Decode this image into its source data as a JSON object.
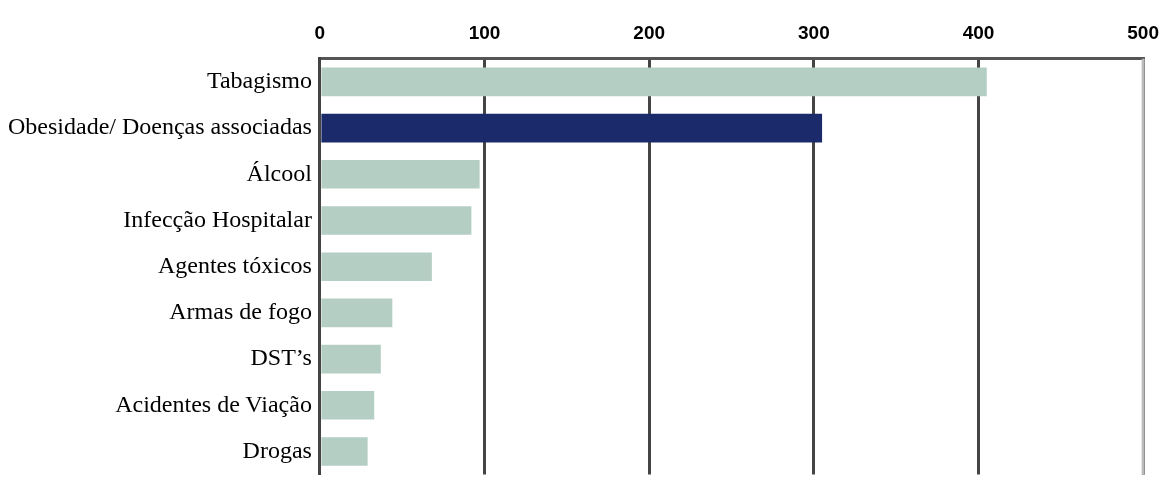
{
  "chart_data": {
    "type": "bar",
    "orientation": "horizontal",
    "categories": [
      "Tabagismo",
      "Obesidade/ Doenças associadas",
      "Álcool",
      "Infecção Hospitalar",
      "Agentes tóxicos",
      "Armas de fogo",
      "DST’s",
      "Acidentes de Viação",
      "Drogas"
    ],
    "values": [
      405,
      305,
      97,
      92,
      68,
      44,
      37,
      33,
      29
    ],
    "colors": [
      "#b4cec3",
      "#1b2a6b",
      "#b4cec3",
      "#b4cec3",
      "#b4cec3",
      "#b4cec3",
      "#b4cec3",
      "#b4cec3",
      "#b4cec3"
    ],
    "xlim": [
      0,
      500
    ],
    "xticks": [
      0,
      100,
      200,
      300,
      400,
      500
    ],
    "grid": "x"
  }
}
